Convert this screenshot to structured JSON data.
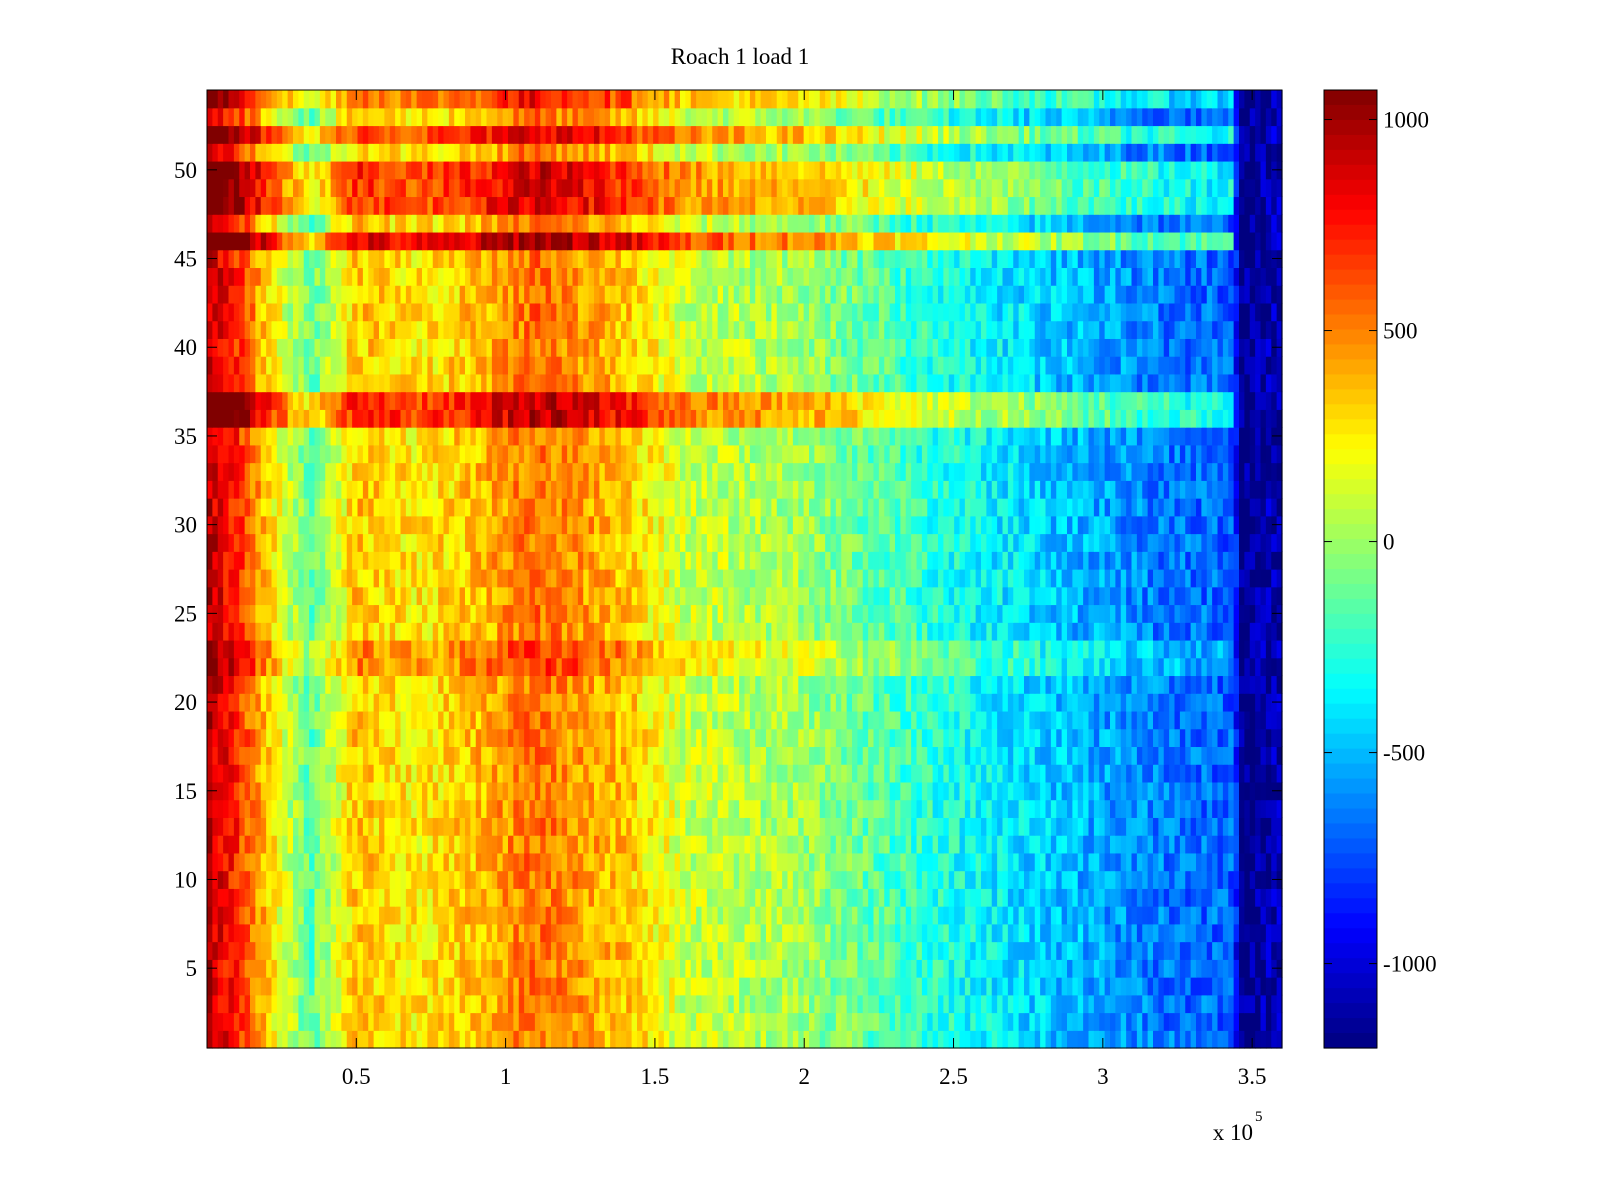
{
  "chart_data": {
    "type": "heatmap",
    "title": "Roach 1 load 1",
    "xlabel": "",
    "ylabel": "",
    "x_multiplier_base": "x 10",
    "x_multiplier_exponent": "5",
    "xlim": [
      0,
      3.6
    ],
    "ylim": [
      0.5,
      54.5
    ],
    "x_ticks": [
      0.5,
      1,
      1.5,
      2,
      2.5,
      3,
      3.5
    ],
    "x_tick_labels": [
      "0.5",
      "1",
      "1.5",
      "2",
      "2.5",
      "3",
      "3.5"
    ],
    "y_ticks": [
      5,
      10,
      15,
      20,
      25,
      30,
      35,
      40,
      45,
      50
    ],
    "y_tick_labels": [
      "5",
      "10",
      "15",
      "20",
      "25",
      "30",
      "35",
      "40",
      "45",
      "50"
    ],
    "colorbar": {
      "colormap": "jet",
      "range": [
        -1200,
        1070
      ],
      "ticks": [
        1000,
        500,
        0,
        -500,
        -1000
      ],
      "tick_labels": [
        "1000",
        "500",
        "0",
        "-500",
        "-1000"
      ]
    },
    "rows": 54,
    "x_range_units": [
      0,
      3.6
    ],
    "row_level_profile": [
      {
        "x": 0.0,
        "value": 950
      },
      {
        "x": 0.1,
        "value": 700
      },
      {
        "x": 0.25,
        "value": 150
      },
      {
        "x": 0.35,
        "value": -150
      },
      {
        "x": 0.5,
        "value": 350
      },
      {
        "x": 0.7,
        "value": 250
      },
      {
        "x": 0.9,
        "value": 350
      },
      {
        "x": 1.1,
        "value": 550
      },
      {
        "x": 1.4,
        "value": 350
      },
      {
        "x": 1.6,
        "value": 100
      },
      {
        "x": 2.0,
        "value": 0
      },
      {
        "x": 2.4,
        "value": -250
      },
      {
        "x": 2.8,
        "value": -450
      },
      {
        "x": 3.2,
        "value": -650
      },
      {
        "x": 3.44,
        "value": -700
      },
      {
        "x": 3.46,
        "value": -1200
      },
      {
        "x": 3.55,
        "value": -1100
      }
    ],
    "highlighted_rows": [
      {
        "rows": [
          36,
          37
        ],
        "offset": 400
      },
      {
        "rows": [
          46
        ],
        "offset": 500
      },
      {
        "rows": [
          48,
          49,
          50
        ],
        "offset": 350
      },
      {
        "rows": [
          52
        ],
        "offset": 350
      },
      {
        "rows": [
          54
        ],
        "offset": 250
      },
      {
        "rows": [
          22,
          23
        ],
        "offset": 150
      }
    ]
  }
}
